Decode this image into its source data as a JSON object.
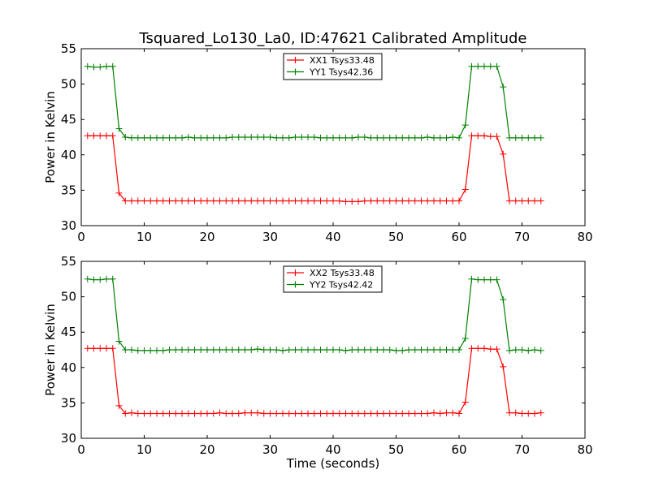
{
  "title": "Tsquared_Lo130_La0, ID:47621 Calibrated Amplitude",
  "chart_data": [
    {
      "type": "line",
      "title": "Tsquared_Lo130_La0, ID:47621 Calibrated Amplitude",
      "xlabel": "",
      "ylabel": "Power in Kelvin",
      "xlim": [
        0,
        80
      ],
      "ylim": [
        30,
        55
      ],
      "xticks": [
        0,
        10,
        20,
        30,
        40,
        50,
        60,
        70,
        80
      ],
      "yticks": [
        30,
        35,
        40,
        45,
        50,
        55
      ],
      "grid": false,
      "legend": "top-center",
      "x": [
        1,
        2,
        3,
        4,
        5,
        6,
        7,
        8,
        9,
        10,
        11,
        12,
        13,
        14,
        15,
        16,
        17,
        18,
        19,
        20,
        21,
        22,
        23,
        24,
        25,
        26,
        27,
        28,
        29,
        30,
        31,
        32,
        33,
        34,
        35,
        36,
        37,
        38,
        39,
        40,
        41,
        42,
        43,
        44,
        45,
        46,
        47,
        48,
        49,
        50,
        51,
        52,
        53,
        54,
        55,
        56,
        57,
        58,
        59,
        60,
        61,
        62,
        63,
        64,
        65,
        66,
        67,
        68,
        69,
        70,
        71,
        72,
        73
      ],
      "series": [
        {
          "name": "XX1 Tsys33.48",
          "color": "#ff0000",
          "values": [
            42.7,
            42.7,
            42.7,
            42.7,
            42.7,
            34.6,
            33.5,
            33.5,
            33.5,
            33.5,
            33.5,
            33.5,
            33.5,
            33.5,
            33.5,
            33.5,
            33.5,
            33.5,
            33.5,
            33.5,
            33.5,
            33.5,
            33.5,
            33.5,
            33.5,
            33.5,
            33.5,
            33.5,
            33.5,
            33.5,
            33.5,
            33.5,
            33.5,
            33.5,
            33.5,
            33.5,
            33.5,
            33.5,
            33.5,
            33.5,
            33.5,
            33.4,
            33.4,
            33.4,
            33.5,
            33.5,
            33.5,
            33.5,
            33.5,
            33.5,
            33.5,
            33.5,
            33.5,
            33.5,
            33.5,
            33.5,
            33.5,
            33.5,
            33.5,
            33.5,
            35.1,
            42.7,
            42.7,
            42.7,
            42.6,
            42.6,
            40.1,
            33.5,
            33.5,
            33.5,
            33.5,
            33.5,
            33.5
          ]
        },
        {
          "name": "YY1 Tsys42.36",
          "color": "#008000",
          "values": [
            52.5,
            52.4,
            52.4,
            52.5,
            52.5,
            43.7,
            42.5,
            42.4,
            42.4,
            42.4,
            42.4,
            42.4,
            42.4,
            42.4,
            42.4,
            42.4,
            42.5,
            42.4,
            42.4,
            42.4,
            42.4,
            42.4,
            42.4,
            42.5,
            42.5,
            42.5,
            42.5,
            42.5,
            42.5,
            42.5,
            42.4,
            42.4,
            42.4,
            42.5,
            42.5,
            42.5,
            42.5,
            42.4,
            42.4,
            42.4,
            42.4,
            42.4,
            42.4,
            42.5,
            42.5,
            42.4,
            42.4,
            42.4,
            42.4,
            42.4,
            42.4,
            42.4,
            42.4,
            42.4,
            42.5,
            42.4,
            42.4,
            42.4,
            42.5,
            42.4,
            44.2,
            52.5,
            52.5,
            52.5,
            52.5,
            52.5,
            49.6,
            42.4,
            42.4,
            42.4,
            42.4,
            42.4,
            42.4
          ]
        }
      ]
    },
    {
      "type": "line",
      "title": "",
      "xlabel": "Time (seconds)",
      "ylabel": "Power in Kelvin",
      "xlim": [
        0,
        80
      ],
      "ylim": [
        30,
        55
      ],
      "xticks": [
        0,
        10,
        20,
        30,
        40,
        50,
        60,
        70,
        80
      ],
      "yticks": [
        30,
        35,
        40,
        45,
        50,
        55
      ],
      "grid": false,
      "legend": "top-center",
      "x": [
        1,
        2,
        3,
        4,
        5,
        6,
        7,
        8,
        9,
        10,
        11,
        12,
        13,
        14,
        15,
        16,
        17,
        18,
        19,
        20,
        21,
        22,
        23,
        24,
        25,
        26,
        27,
        28,
        29,
        30,
        31,
        32,
        33,
        34,
        35,
        36,
        37,
        38,
        39,
        40,
        41,
        42,
        43,
        44,
        45,
        46,
        47,
        48,
        49,
        50,
        51,
        52,
        53,
        54,
        55,
        56,
        57,
        58,
        59,
        60,
        61,
        62,
        63,
        64,
        65,
        66,
        67,
        68,
        69,
        70,
        71,
        72,
        73
      ],
      "series": [
        {
          "name": "XX2 Tsys33.48",
          "color": "#ff0000",
          "values": [
            42.7,
            42.7,
            42.7,
            42.7,
            42.7,
            34.6,
            33.5,
            33.6,
            33.5,
            33.5,
            33.5,
            33.5,
            33.5,
            33.5,
            33.5,
            33.5,
            33.5,
            33.5,
            33.5,
            33.5,
            33.5,
            33.6,
            33.5,
            33.5,
            33.5,
            33.6,
            33.6,
            33.6,
            33.5,
            33.5,
            33.5,
            33.5,
            33.5,
            33.5,
            33.5,
            33.5,
            33.5,
            33.5,
            33.5,
            33.5,
            33.5,
            33.5,
            33.5,
            33.5,
            33.5,
            33.5,
            33.5,
            33.5,
            33.5,
            33.5,
            33.5,
            33.5,
            33.5,
            33.5,
            33.5,
            33.6,
            33.5,
            33.6,
            33.6,
            33.5,
            35.1,
            42.7,
            42.7,
            42.7,
            42.6,
            42.6,
            40.1,
            33.6,
            33.6,
            33.5,
            33.5,
            33.5,
            33.6
          ]
        },
        {
          "name": "YY2 Tsys42.42",
          "color": "#008000",
          "values": [
            52.5,
            52.4,
            52.4,
            52.5,
            52.5,
            43.7,
            42.5,
            42.5,
            42.4,
            42.4,
            42.4,
            42.4,
            42.4,
            42.5,
            42.5,
            42.5,
            42.5,
            42.5,
            42.5,
            42.5,
            42.5,
            42.5,
            42.5,
            42.5,
            42.5,
            42.5,
            42.5,
            42.6,
            42.5,
            42.5,
            42.5,
            42.4,
            42.5,
            42.5,
            42.5,
            42.5,
            42.5,
            42.5,
            42.5,
            42.5,
            42.5,
            42.4,
            42.5,
            42.5,
            42.5,
            42.5,
            42.5,
            42.5,
            42.5,
            42.4,
            42.4,
            42.5,
            42.5,
            42.5,
            42.5,
            42.5,
            42.5,
            42.5,
            42.5,
            42.5,
            44.1,
            52.5,
            52.4,
            52.4,
            52.4,
            52.4,
            49.6,
            42.4,
            42.5,
            42.5,
            42.4,
            42.5,
            42.4
          ]
        }
      ]
    }
  ]
}
